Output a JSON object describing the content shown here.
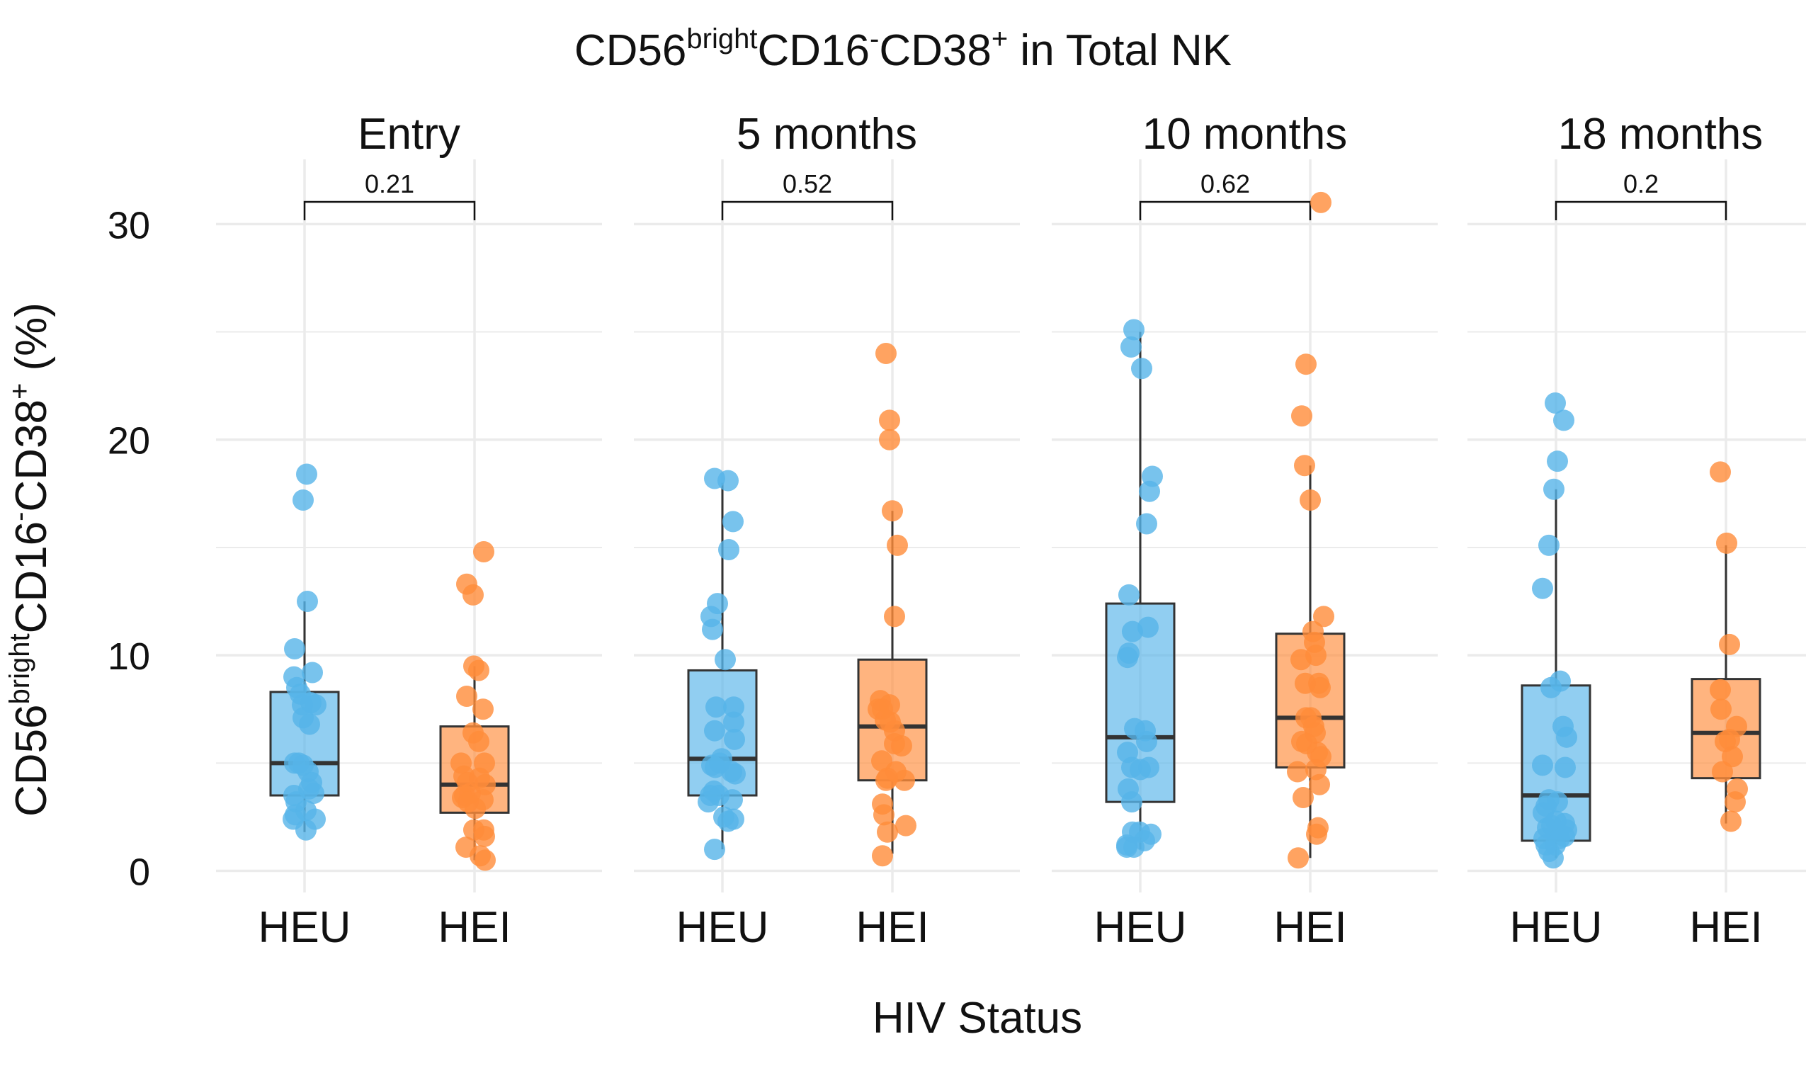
{
  "chart_data": {
    "type": "box",
    "title": {
      "base": "CD56",
      "sup1": "bright",
      "mid": "CD16",
      "sup2": "-",
      "mid2": "CD38",
      "sup3": "+",
      "tail": " in Total NK"
    },
    "ylabel": {
      "base": "CD56",
      "sup1": "bright",
      "mid": "CD16",
      "sup2": "-",
      "mid2": "CD38",
      "sup3": "+",
      "tail": " (%)"
    },
    "xlabel": "HIV Status",
    "ylim": [
      -1,
      33
    ],
    "yticks": [
      0,
      10,
      20,
      30
    ],
    "grid": true,
    "legend": "none",
    "colors": {
      "HEU": "#56B4E9",
      "HEI": "#FF8C3A",
      "box_line": "#333333",
      "grid": "#ebebeb"
    },
    "categories": [
      "HEU",
      "HEI"
    ],
    "panels": [
      {
        "label": "Entry",
        "pvalue": "0.21",
        "groups": [
          {
            "name": "HEU",
            "box": {
              "q1": 3.5,
              "median": 5.0,
              "q3": 8.3,
              "whisker_low": 1.8,
              "whisker_high": 12.5
            },
            "points": [
              [
                0.03,
                18.4
              ],
              [
                -0.02,
                17.2
              ],
              [
                0.04,
                12.5
              ],
              [
                -0.14,
                10.3
              ],
              [
                -0.15,
                9.0
              ],
              [
                0.11,
                9.2
              ],
              [
                -0.11,
                8.5
              ],
              [
                -0.06,
                8.2
              ],
              [
                -0.03,
                7.7
              ],
              [
                0.16,
                7.7
              ],
              [
                0.09,
                7.8
              ],
              [
                -0.02,
                7.1
              ],
              [
                0.07,
                6.8
              ],
              [
                -0.14,
                5.0
              ],
              [
                -0.08,
                5.0
              ],
              [
                -0.02,
                4.9
              ],
              [
                0.05,
                4.6
              ],
              [
                0.1,
                4.1
              ],
              [
                -0.15,
                3.5
              ],
              [
                -0.12,
                3.2
              ],
              [
                0.06,
                3.8
              ],
              [
                0.13,
                3.6
              ],
              [
                0.02,
                2.8
              ],
              [
                -0.13,
                2.6
              ],
              [
                -0.16,
                2.4
              ],
              [
                0.15,
                2.4
              ],
              [
                0.02,
                1.9
              ]
            ]
          },
          {
            "name": "HEI",
            "box": {
              "q1": 2.7,
              "median": 4.0,
              "q3": 6.7,
              "whisker_low": 0.5,
              "whisker_high": 9.5
            },
            "points": [
              [
                -0.11,
                13.3
              ],
              [
                -0.02,
                12.8
              ],
              [
                0.13,
                14.8
              ],
              [
                -0.01,
                9.5
              ],
              [
                0.06,
                9.3
              ],
              [
                -0.11,
                8.1
              ],
              [
                0.12,
                7.5
              ],
              [
                -0.02,
                6.4
              ],
              [
                0.06,
                6.0
              ],
              [
                -0.19,
                5.0
              ],
              [
                0.14,
                5.0
              ],
              [
                -0.15,
                4.4
              ],
              [
                -0.1,
                4.1
              ],
              [
                0.07,
                4.3
              ],
              [
                0.15,
                4.0
              ],
              [
                -0.17,
                3.4
              ],
              [
                -0.14,
                3.5
              ],
              [
                -0.06,
                3.6
              ],
              [
                -0.09,
                3.2
              ],
              [
                0.12,
                3.3
              ],
              [
                0.01,
                2.9
              ],
              [
                -0.01,
                1.9
              ],
              [
                0.13,
                1.9
              ],
              [
                -0.12,
                1.1
              ],
              [
                0.14,
                1.6
              ],
              [
                0.08,
                0.7
              ],
              [
                0.15,
                0.5
              ]
            ]
          }
        ]
      },
      {
        "label": "5 months",
        "pvalue": "0.52",
        "groups": [
          {
            "name": "HEU",
            "box": {
              "q1": 3.5,
              "median": 5.2,
              "q3": 9.3,
              "whisker_low": 1.0,
              "whisker_high": 18.0
            },
            "points": [
              [
                -0.11,
                18.2
              ],
              [
                0.08,
                18.1
              ],
              [
                0.15,
                16.2
              ],
              [
                0.09,
                14.9
              ],
              [
                -0.07,
                12.4
              ],
              [
                -0.16,
                11.8
              ],
              [
                -0.14,
                11.2
              ],
              [
                0.04,
                9.8
              ],
              [
                -0.09,
                7.6
              ],
              [
                0.16,
                7.6
              ],
              [
                0.16,
                6.9
              ],
              [
                -0.11,
                6.5
              ],
              [
                0.17,
                6.1
              ],
              [
                -0.04,
                5.0
              ],
              [
                -0.15,
                4.9
              ],
              [
                -0.1,
                4.8
              ],
              [
                -0.01,
                5.2
              ],
              [
                0.13,
                4.6
              ],
              [
                0.18,
                4.5
              ],
              [
                -0.17,
                3.5
              ],
              [
                -0.12,
                3.7
              ],
              [
                -0.05,
                3.5
              ],
              [
                0.14,
                3.3
              ],
              [
                -0.2,
                3.2
              ],
              [
                0.02,
                2.5
              ],
              [
                0.08,
                2.3
              ],
              [
                0.16,
                2.4
              ],
              [
                -0.11,
                1.0
              ]
            ]
          },
          {
            "name": "HEI",
            "box": {
              "q1": 4.2,
              "median": 6.7,
              "q3": 9.8,
              "whisker_low": 0.8,
              "whisker_high": 16.7
            },
            "points": [
              [
                -0.09,
                24.0
              ],
              [
                -0.04,
                20.9
              ],
              [
                -0.04,
                20.0
              ],
              [
                0.0,
                16.7
              ],
              [
                0.07,
                15.1
              ],
              [
                0.03,
                11.8
              ],
              [
                -0.17,
                7.9
              ],
              [
                -0.2,
                7.5
              ],
              [
                -0.14,
                7.5
              ],
              [
                -0.04,
                7.7
              ],
              [
                -0.1,
                7.0
              ],
              [
                -0.03,
                6.9
              ],
              [
                0.03,
                6.5
              ],
              [
                0.03,
                5.9
              ],
              [
                0.13,
                5.8
              ],
              [
                -0.15,
                5.1
              ],
              [
                0.05,
                4.6
              ],
              [
                0.17,
                4.2
              ],
              [
                -0.07,
                4.3
              ],
              [
                -0.09,
                4.2
              ],
              [
                -0.14,
                3.1
              ],
              [
                -0.12,
                2.6
              ],
              [
                -0.07,
                1.8
              ],
              [
                0.19,
                2.1
              ],
              [
                -0.14,
                0.7
              ]
            ]
          }
        ]
      },
      {
        "label": "10 months",
        "pvalue": "0.62",
        "groups": [
          {
            "name": "HEU",
            "box": {
              "q1": 3.2,
              "median": 6.2,
              "q3": 12.4,
              "whisker_low": 1.0,
              "whisker_high": 25.0
            },
            "points": [
              [
                -0.09,
                25.1
              ],
              [
                -0.13,
                24.3
              ],
              [
                0.02,
                23.3
              ],
              [
                0.17,
                18.3
              ],
              [
                0.13,
                17.6
              ],
              [
                0.09,
                16.1
              ],
              [
                -0.16,
                12.8
              ],
              [
                -0.11,
                11.1
              ],
              [
                0.11,
                11.3
              ],
              [
                -0.18,
                9.9
              ],
              [
                -0.16,
                10.1
              ],
              [
                -0.08,
                6.6
              ],
              [
                0.07,
                6.5
              ],
              [
                0.09,
                6.0
              ],
              [
                -0.18,
                5.5
              ],
              [
                -0.12,
                4.8
              ],
              [
                0.0,
                4.7
              ],
              [
                0.12,
                4.8
              ],
              [
                -0.17,
                3.8
              ],
              [
                -0.12,
                3.2
              ],
              [
                -0.19,
                1.2
              ],
              [
                -0.11,
                1.8
              ],
              [
                -0.01,
                1.8
              ],
              [
                0.06,
                1.4
              ],
              [
                0.15,
                1.7
              ],
              [
                -0.09,
                1.1
              ],
              [
                -0.19,
                1.1
              ]
            ]
          },
          {
            "name": "HEI",
            "box": {
              "q1": 4.8,
              "median": 7.1,
              "q3": 11.0,
              "whisker_low": 0.6,
              "whisker_high": 18.8
            },
            "points": [
              [
                0.15,
                31.0
              ],
              [
                -0.06,
                23.5
              ],
              [
                -0.12,
                21.1
              ],
              [
                -0.08,
                18.8
              ],
              [
                0.0,
                17.2
              ],
              [
                0.19,
                11.8
              ],
              [
                0.04,
                11.1
              ],
              [
                0.06,
                10.6
              ],
              [
                -0.13,
                9.8
              ],
              [
                0.08,
                10.0
              ],
              [
                -0.07,
                8.7
              ],
              [
                0.12,
                8.7
              ],
              [
                0.14,
                8.5
              ],
              [
                -0.06,
                7.1
              ],
              [
                0.01,
                7.1
              ],
              [
                0.05,
                6.7
              ],
              [
                0.07,
                6.4
              ],
              [
                -0.12,
                6.0
              ],
              [
                -0.05,
                5.9
              ],
              [
                0.15,
                5.3
              ],
              [
                0.1,
                5.5
              ],
              [
                -0.18,
                4.6
              ],
              [
                0.08,
                4.7
              ],
              [
                0.13,
                4.0
              ],
              [
                -0.1,
                3.4
              ],
              [
                0.11,
                2.0
              ],
              [
                0.09,
                1.7
              ],
              [
                -0.17,
                0.6
              ]
            ]
          }
        ]
      },
      {
        "label": "18 months",
        "pvalue": "0.2",
        "groups": [
          {
            "name": "HEU",
            "box": {
              "q1": 1.4,
              "median": 3.5,
              "q3": 8.6,
              "whisker_low": 0.6,
              "whisker_high": 17.7
            },
            "points": [
              [
                -0.01,
                21.7
              ],
              [
                0.11,
                20.9
              ],
              [
                0.02,
                19.0
              ],
              [
                -0.03,
                17.7
              ],
              [
                -0.19,
                13.1
              ],
              [
                -0.1,
                15.1
              ],
              [
                0.06,
                8.8
              ],
              [
                -0.07,
                8.5
              ],
              [
                0.1,
                6.7
              ],
              [
                0.15,
                6.2
              ],
              [
                0.13,
                4.8
              ],
              [
                -0.19,
                4.9
              ],
              [
                -0.14,
                3.0
              ],
              [
                -0.1,
                3.3
              ],
              [
                0.02,
                3.2
              ],
              [
                -0.18,
                2.7
              ],
              [
                -0.12,
                2.0
              ],
              [
                -0.06,
                2.1
              ],
              [
                0.0,
                2.3
              ],
              [
                0.12,
                2.2
              ],
              [
                0.15,
                1.9
              ],
              [
                -0.17,
                1.5
              ],
              [
                -0.14,
                1.2
              ],
              [
                0.05,
                1.5
              ],
              [
                0.12,
                1.6
              ],
              [
                -0.01,
                1.2
              ],
              [
                -0.1,
                0.9
              ],
              [
                -0.04,
                0.6
              ]
            ]
          },
          {
            "name": "HEI",
            "box": {
              "q1": 4.3,
              "median": 6.4,
              "q3": 8.9,
              "whisker_low": 2.2,
              "whisker_high": 15.1
            },
            "points": [
              [
                -0.08,
                18.5
              ],
              [
                0.01,
                15.2
              ],
              [
                -0.08,
                8.4
              ],
              [
                -0.07,
                7.5
              ],
              [
                0.05,
                10.5
              ],
              [
                0.05,
                6.1
              ],
              [
                0.15,
                6.7
              ],
              [
                -0.01,
                6.0
              ],
              [
                0.09,
                5.3
              ],
              [
                -0.05,
                4.6
              ],
              [
                0.16,
                3.8
              ],
              [
                0.13,
                3.2
              ],
              [
                0.07,
                2.3
              ]
            ]
          }
        ]
      }
    ]
  }
}
